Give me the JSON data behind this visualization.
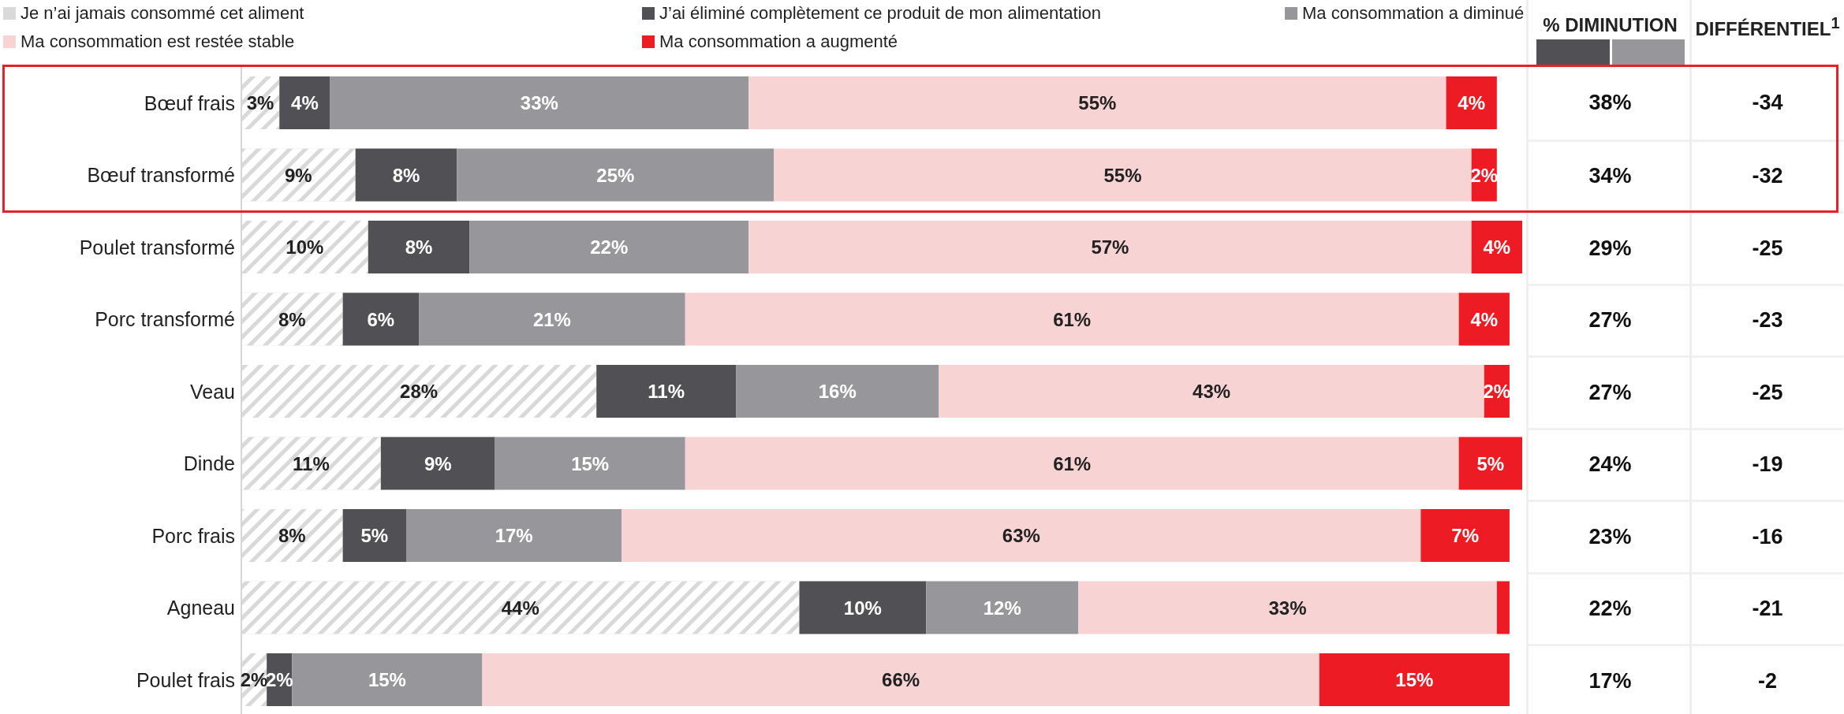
{
  "chart_data": [
    {
      "type": "bar",
      "orientation": "horizontal",
      "stacked": true,
      "legend": "top",
      "categories": [
        "Bœuf frais",
        "Bœuf transformé",
        "Poulet transformé",
        "Porc transformé",
        "Veau",
        "Dinde",
        "Porc frais",
        "Agneau",
        "Poulet frais"
      ],
      "series": [
        {
          "name": "Je n’ai jamais consommé cet aliment",
          "color": "#d9d9d9",
          "values": [
            3,
            9,
            10,
            8,
            28,
            11,
            8,
            44,
            2
          ],
          "value_labels": [
            "3%",
            "9%",
            "10%",
            "8%",
            "28%",
            "11%",
            "8%",
            "44%",
            "2%"
          ]
        },
        {
          "name": "J’ai éliminé complètement ce produit de mon alimentation",
          "color": "#515055",
          "values": [
            4,
            8,
            8,
            6,
            11,
            9,
            5,
            10,
            2
          ],
          "value_labels": [
            "4%",
            "8%",
            "8%",
            "6%",
            "11%",
            "9%",
            "5%",
            "10%",
            "2%"
          ]
        },
        {
          "name": "Ma consommation a diminué",
          "color": "#97969b",
          "values": [
            33,
            25,
            22,
            21,
            16,
            15,
            17,
            12,
            15
          ],
          "value_labels": [
            "33%",
            "25%",
            "22%",
            "21%",
            "16%",
            "15%",
            "17%",
            "12%",
            "15%"
          ]
        },
        {
          "name": "Ma consommation est restée stable",
          "color": "#f8d3d4",
          "values": [
            55,
            55,
            57,
            61,
            43,
            61,
            63,
            33,
            66
          ],
          "value_labels": [
            "55%",
            "55%",
            "57%",
            "61%",
            "43%",
            "61%",
            "63%",
            "33%",
            "66%"
          ]
        },
        {
          "name": "Ma consommation a augmenté",
          "color": "#ed1c24",
          "values": [
            4,
            2,
            4,
            4,
            2,
            5,
            7,
            1,
            15
          ],
          "value_labels": [
            "4%",
            "2%",
            "4%",
            "4%",
            "2%",
            "5%",
            "7%",
            null,
            "15%"
          ]
        }
      ]
    },
    {
      "type": "other",
      "title": "% DIMINUTION",
      "values": [
        38,
        34,
        29,
        27,
        27,
        24,
        23,
        22,
        17
      ],
      "value_labels": [
        "38%",
        "34%",
        "29%",
        "27%",
        "27%",
        "24%",
        "23%",
        "22%",
        "17%"
      ]
    },
    {
      "type": "other",
      "title": "DIFFÉRENTIEL$^{1}$",
      "values": [
        -34,
        -32,
        -25,
        -23,
        -25,
        -19,
        -16,
        -21,
        -2
      ],
      "value_labels": [
        "-34",
        "-32",
        "-25",
        "-23",
        "-25",
        "-19",
        "-16",
        "-21",
        "-2"
      ]
    }
  ]
}
